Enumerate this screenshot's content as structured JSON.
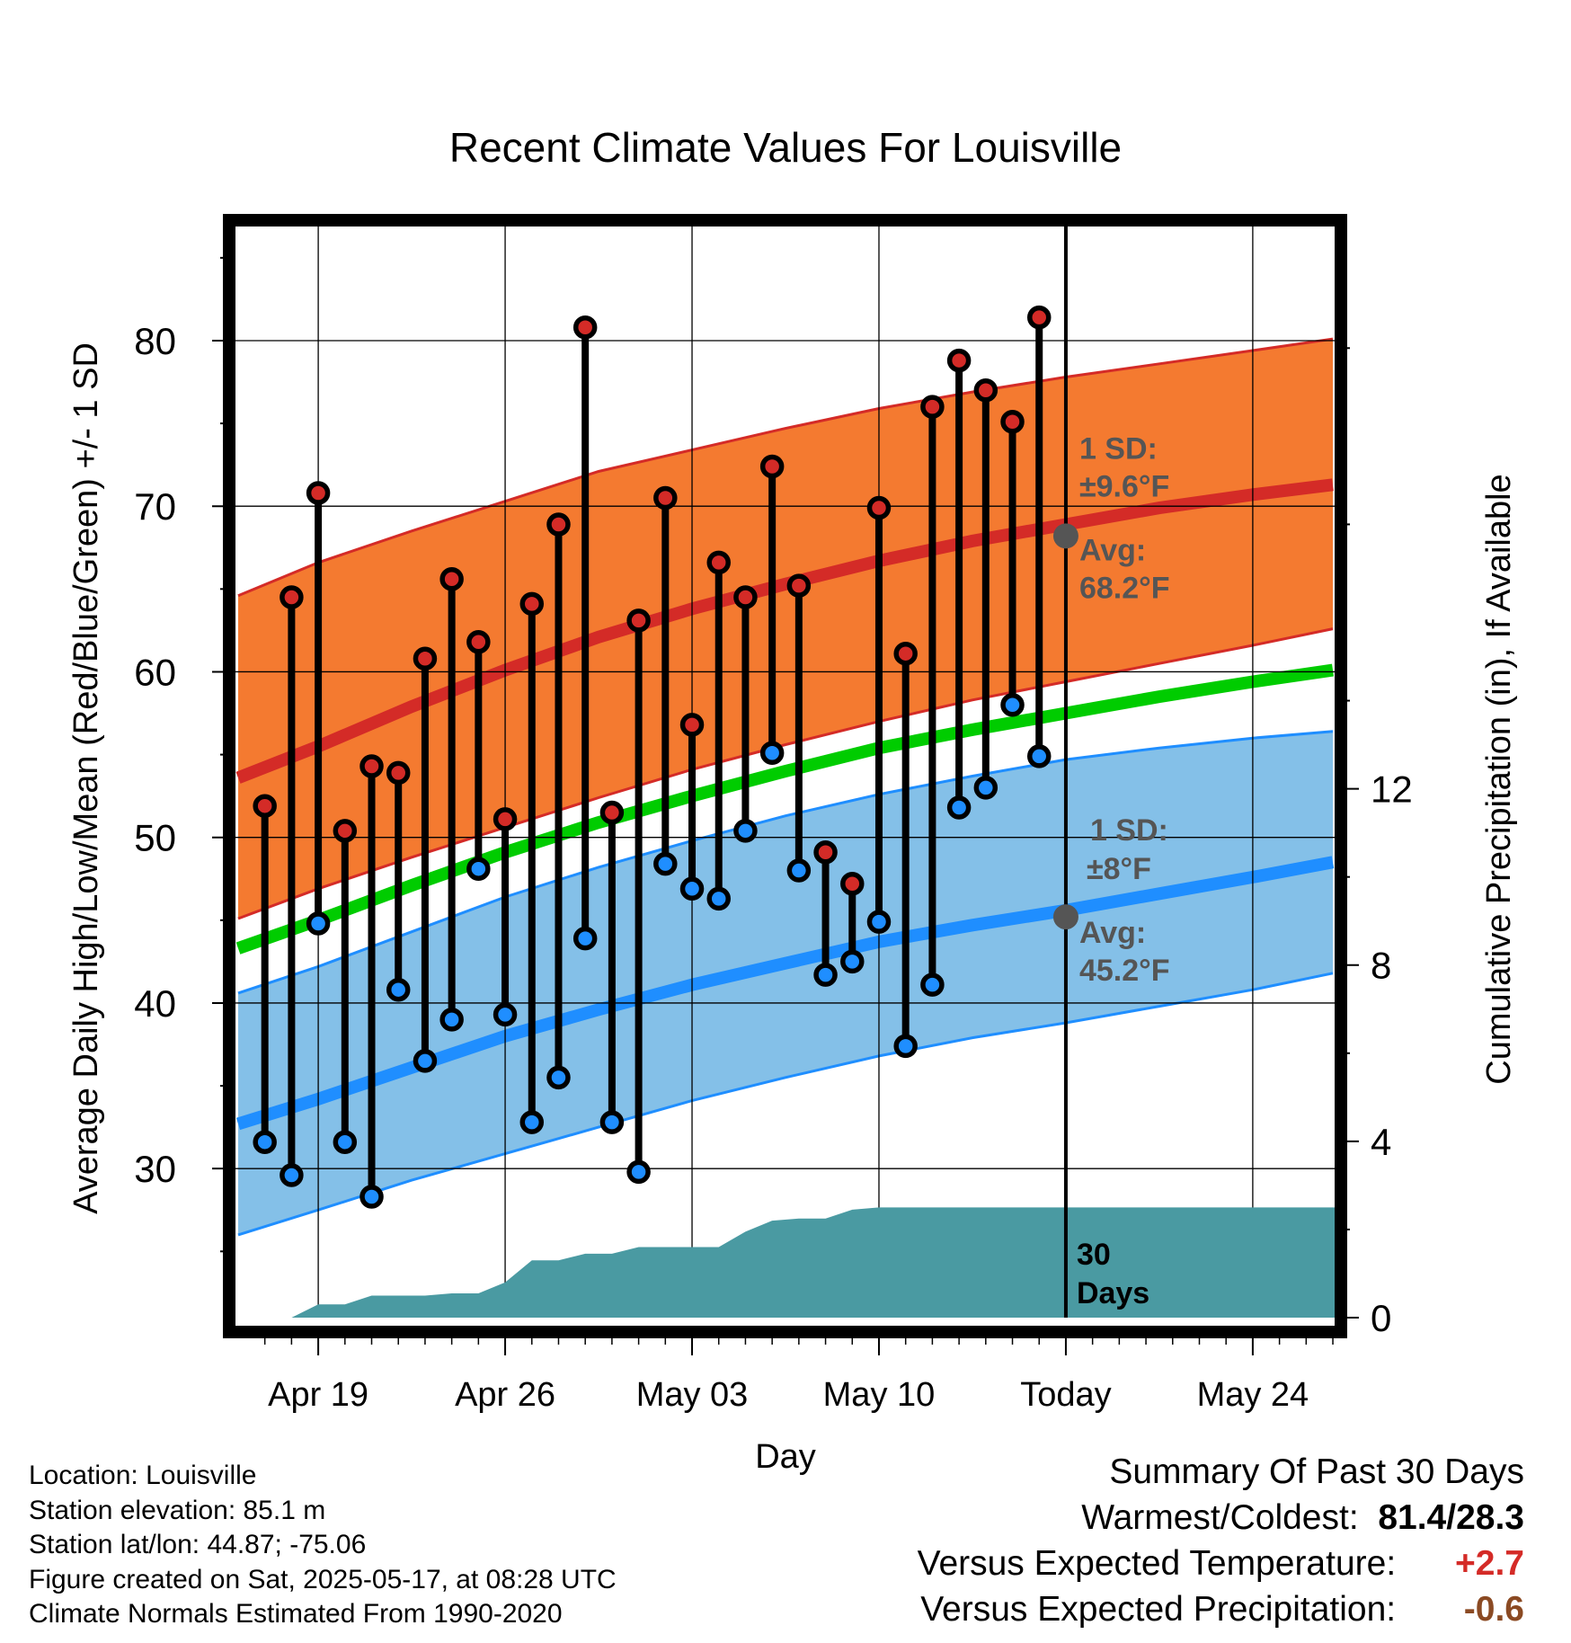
{
  "title": "Recent Climate Values For Louisville",
  "colors": {
    "high_band": "#f47a30",
    "high_line": "#d42b27",
    "low_band": "#84c0e8",
    "low_line": "#1f8eff",
    "mean_line": "#00cc00",
    "precip": "#4a9aa2",
    "high_marker": "#d42b27",
    "low_marker": "#1f8eff",
    "annotation": "#555555",
    "warm": "#d42b27",
    "dry": "#8b4a23"
  },
  "chart_data": {
    "type": "line",
    "title": "Recent Climate Values For Louisville",
    "xlabel": "Day",
    "ylabel": "Average Daily High/Low/Mean (Red/Blue/Green) +/- 1 SD",
    "y2label": "Cumulative Precipitation (in), If Available",
    "xlim": [
      -3.1,
      38.1
    ],
    "ylim": [
      21,
      87
    ],
    "y2lim": [
      0,
      24.8
    ],
    "xticks": [
      {
        "x": 0,
        "label": "Apr 19"
      },
      {
        "x": 7,
        "label": "Apr 26"
      },
      {
        "x": 14,
        "label": "May 03"
      },
      {
        "x": 21,
        "label": "May 10"
      },
      {
        "x": 28,
        "label": "Today"
      },
      {
        "x": 35,
        "label": "May 24"
      }
    ],
    "yticks": [
      30,
      40,
      50,
      60,
      70,
      80
    ],
    "y2ticks": [
      0,
      4,
      8,
      12
    ],
    "today_x": 28,
    "normals": {
      "x": [
        -3,
        0,
        3.5,
        7,
        10.5,
        14,
        17.5,
        21,
        24.5,
        28,
        31.5,
        35,
        38
      ],
      "high_avg": [
        53.6,
        55.5,
        57.9,
        60.1,
        62.1,
        63.8,
        65.3,
        66.7,
        67.9,
        68.9,
        69.9,
        70.7,
        71.3
      ],
      "high_upper": [
        64.6,
        66.6,
        68.5,
        70.3,
        72.1,
        73.4,
        74.7,
        75.9,
        76.9,
        77.8,
        78.6,
        79.4,
        80.1
      ],
      "high_lower": [
        45.1,
        46.9,
        48.8,
        50.6,
        52.4,
        54.1,
        55.6,
        57.0,
        58.3,
        59.4,
        60.5,
        61.6,
        62.6
      ],
      "mean": [
        43.3,
        45.0,
        47.1,
        49.1,
        50.9,
        52.5,
        54.0,
        55.4,
        56.5,
        57.5,
        58.5,
        59.4,
        60.1
      ],
      "low_avg": [
        32.7,
        34.2,
        36.1,
        38.0,
        39.6,
        41.1,
        42.4,
        43.7,
        44.7,
        45.6,
        46.6,
        47.6,
        48.5
      ],
      "low_upper": [
        40.6,
        42.2,
        44.3,
        46.4,
        48.2,
        49.8,
        51.3,
        52.6,
        53.7,
        54.7,
        55.4,
        56.0,
        56.4
      ],
      "low_lower": [
        26.0,
        27.5,
        29.3,
        30.9,
        32.5,
        34.1,
        35.5,
        36.8,
        37.9,
        38.8,
        39.8,
        40.8,
        41.8
      ]
    },
    "observations": {
      "x": [
        -2,
        -1,
        0,
        1,
        2,
        3,
        4,
        5,
        6,
        7,
        8,
        9,
        10,
        11,
        12,
        13,
        14,
        15,
        16,
        17,
        18,
        19,
        20,
        21,
        22,
        23,
        24,
        25,
        26,
        27
      ],
      "high": [
        51.9,
        64.5,
        70.8,
        50.4,
        54.3,
        53.9,
        60.8,
        65.6,
        61.8,
        51.1,
        64.1,
        68.9,
        80.8,
        51.5,
        63.1,
        70.5,
        56.8,
        66.6,
        64.5,
        72.4,
        65.2,
        49.1,
        47.2,
        69.9,
        61.1,
        76.0,
        78.8,
        77.0,
        75.1,
        81.4
      ],
      "low": [
        31.6,
        29.6,
        44.8,
        31.6,
        28.3,
        40.8,
        36.5,
        39.0,
        48.1,
        39.3,
        32.8,
        35.5,
        43.9,
        32.8,
        29.8,
        48.4,
        46.9,
        46.3,
        50.4,
        55.1,
        48.0,
        41.7,
        42.5,
        44.9,
        37.4,
        41.1,
        51.8,
        53.0,
        58.0,
        54.9
      ]
    },
    "precipitation": {
      "x": [
        -3.1,
        -1,
        0,
        1,
        2,
        3,
        4,
        5,
        6,
        7,
        8,
        9,
        10,
        11,
        12,
        13,
        14,
        15,
        16,
        17,
        18,
        19,
        20,
        21,
        22,
        28,
        38.1
      ],
      "cumulative": [
        0.0,
        0.0,
        0.3,
        0.3,
        0.5,
        0.5,
        0.5,
        0.55,
        0.55,
        0.8,
        1.3,
        1.3,
        1.45,
        1.45,
        1.6,
        1.6,
        1.6,
        1.6,
        1.95,
        2.2,
        2.25,
        2.25,
        2.45,
        2.5,
        2.5,
        2.5,
        2.5
      ]
    },
    "annotations": {
      "high_sd_label": "1 SD:",
      "high_sd_value": "±9.6°F",
      "high_avg_label": "Avg:",
      "high_avg_value": "68.2°F",
      "low_sd_label": "1 SD:",
      "low_sd_value": "±8°F",
      "low_avg_label": "Avg:",
      "low_avg_value": "45.2°F",
      "period_number": "30",
      "period_unit": "Days",
      "today_high": 68.2,
      "today_low": 45.2
    },
    "grid": true
  },
  "info": {
    "location": "Location: Louisville",
    "elevation": "Station elevation: 85.1 m",
    "latlon": "Station lat/lon: 44.87; -75.06",
    "created": "Figure created on Sat, 2025-05-17, at 08:28 UTC",
    "normals": "Climate Normals Estimated From 1990-2020"
  },
  "summary": {
    "heading": "Summary Of Past 30 Days",
    "warm_cold_label": "Warmest/Coldest:",
    "warm_cold_value": "81.4/28.3",
    "temp_label": "Versus Expected Temperature:",
    "temp_value": "+2.7",
    "precip_label": "Versus Expected Precipitation:",
    "precip_value": "-0.6"
  }
}
